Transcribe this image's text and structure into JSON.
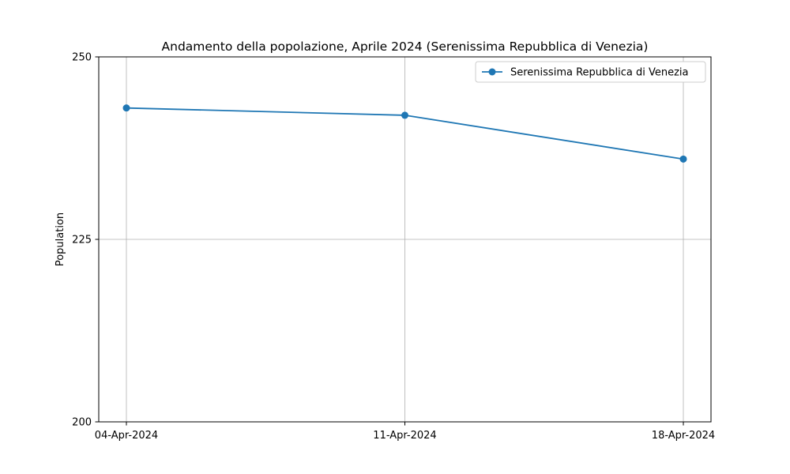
{
  "chart_data": {
    "type": "line",
    "title": "Andamento della popolazione, Aprile 2024 (Serenissima Repubblica di Venezia)",
    "xlabel": "",
    "ylabel": "Population",
    "categories": [
      "04-Apr-2024",
      "11-Apr-2024",
      "18-Apr-2024"
    ],
    "series": [
      {
        "name": "Serenissima Repubblica di Venezia",
        "values": [
          243,
          242,
          236
        ],
        "color": "#1f77b4"
      }
    ],
    "ylim": [
      200,
      250
    ],
    "yticks": [
      200,
      225,
      250
    ],
    "grid": true,
    "legend_position": "top-right"
  }
}
